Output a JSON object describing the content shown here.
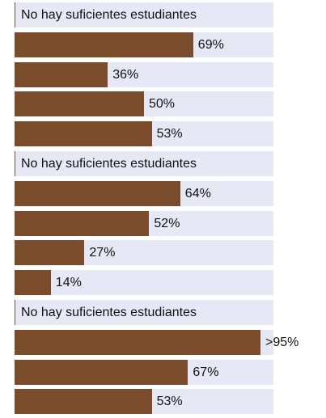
{
  "chart_data": {
    "type": "bar",
    "orientation": "horizontal",
    "xlim": [
      0,
      100
    ],
    "colors": {
      "bar": "#7b4c2b",
      "track": "#e6e8f6"
    },
    "rows": [
      {
        "kind": "message",
        "text": "No hay suficientes estudiantes"
      },
      {
        "kind": "bar",
        "value": 69,
        "label": "69%"
      },
      {
        "kind": "bar",
        "value": 36,
        "label": "36%"
      },
      {
        "kind": "bar",
        "value": 50,
        "label": "50%"
      },
      {
        "kind": "bar",
        "value": 53,
        "label": "53%"
      },
      {
        "kind": "message",
        "text": "No hay suficientes estudiantes"
      },
      {
        "kind": "bar",
        "value": 64,
        "label": "64%"
      },
      {
        "kind": "bar",
        "value": 52,
        "label": "52%"
      },
      {
        "kind": "bar",
        "value": 27,
        "label": "27%"
      },
      {
        "kind": "bar",
        "value": 14,
        "label": "14%"
      },
      {
        "kind": "message",
        "text": "No hay suficientes estudiantes"
      },
      {
        "kind": "bar",
        "value": 95,
        "label": ">95%"
      },
      {
        "kind": "bar",
        "value": 67,
        "label": "67%"
      },
      {
        "kind": "bar",
        "value": 53,
        "label": "53%"
      }
    ]
  }
}
